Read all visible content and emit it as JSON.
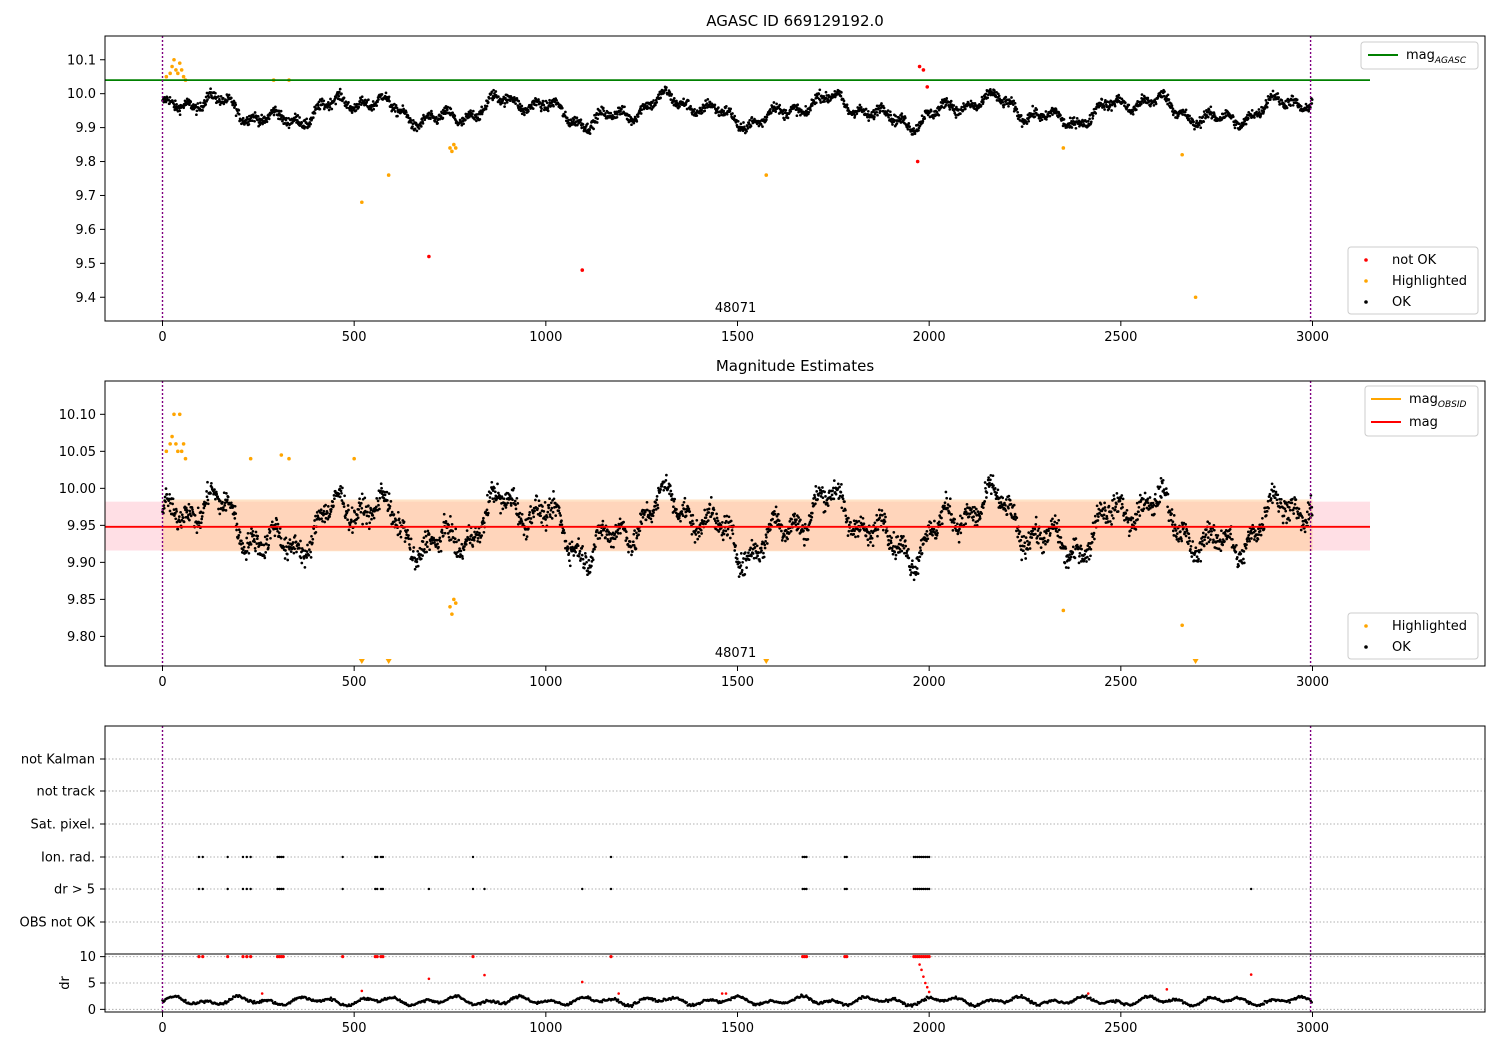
{
  "chart_data": [
    {
      "type": "scatter",
      "title": "AGASC ID 669129192.0",
      "xlim": [
        -150,
        3450
      ],
      "ylim": [
        9.33,
        10.17
      ],
      "xticks": [
        0,
        500,
        1000,
        1500,
        2000,
        2500,
        3000
      ],
      "yticks": [
        9.4,
        9.5,
        9.6,
        9.7,
        9.8,
        9.9,
        10.0,
        10.1
      ],
      "ytick_labels": [
        "9.4",
        "9.5",
        "9.6",
        "9.7",
        "9.8",
        "9.9",
        "10.0",
        "10.1"
      ],
      "vlines": [
        0,
        2995
      ],
      "obsid_label": {
        "text": "48071",
        "x": 1495
      },
      "hline": {
        "name": "mag",
        "subscript": "AGASC",
        "y": 10.04,
        "color": "#008000",
        "x": [
          -150,
          3150
        ]
      },
      "legend_upper": [
        {
          "label": "mag",
          "subscript": "AGASC",
          "color": "#008000",
          "kind": "line"
        }
      ],
      "legend_lower": [
        {
          "label": "not OK",
          "color": "#ff0000",
          "kind": "dot"
        },
        {
          "label": "Highlighted",
          "color": "#ffa500",
          "kind": "dot"
        },
        {
          "label": "OK",
          "color": "#000000",
          "kind": "dot"
        }
      ],
      "series": [
        {
          "name": "not OK",
          "color": "#ff0000",
          "points": [
            [
              695,
              9.52
            ],
            [
              1095,
              9.48
            ],
            [
              1970,
              9.8
            ],
            [
              1975,
              10.08
            ],
            [
              1985,
              10.07
            ],
            [
              1995,
              10.02
            ]
          ]
        },
        {
          "name": "Highlighted",
          "color": "#ffa500",
          "points": [
            [
              10,
              10.05
            ],
            [
              20,
              10.06
            ],
            [
              25,
              10.08
            ],
            [
              30,
              10.1
            ],
            [
              35,
              10.07
            ],
            [
              40,
              10.06
            ],
            [
              45,
              10.09
            ],
            [
              50,
              10.07
            ],
            [
              55,
              10.05
            ],
            [
              60,
              10.04
            ],
            [
              290,
              10.04
            ],
            [
              330,
              10.04
            ],
            [
              520,
              9.68
            ],
            [
              590,
              9.76
            ],
            [
              750,
              9.84
            ],
            [
              755,
              9.83
            ],
            [
              760,
              9.85
            ],
            [
              765,
              9.84
            ],
            [
              1575,
              9.76
            ],
            [
              2350,
              9.84
            ],
            [
              2660,
              9.82
            ],
            [
              2695,
              9.4
            ]
          ]
        },
        {
          "name": "OK",
          "color": "#000000",
          "trend": true
        }
      ]
    },
    {
      "type": "scatter",
      "title": "Magnitude Estimates",
      "xlim": [
        -150,
        3450
      ],
      "ylim": [
        9.76,
        10.145
      ],
      "xticks": [
        0,
        500,
        1000,
        1500,
        2000,
        2500,
        3000
      ],
      "yticks": [
        9.8,
        9.85,
        9.9,
        9.95,
        10.0,
        10.05,
        10.1
      ],
      "ytick_labels": [
        "9.80",
        "9.85",
        "9.90",
        "9.95",
        "10.00",
        "10.05",
        "10.10"
      ],
      "vlines": [
        0,
        2995
      ],
      "obsid_label": {
        "text": "48071",
        "x": 1495
      },
      "mag_line": {
        "name": "mag",
        "y": 9.948,
        "color": "#ff0000",
        "x": [
          -150,
          3150
        ]
      },
      "band": {
        "y": [
          9.916,
          9.982
        ],
        "x": [
          -150,
          3150
        ],
        "color": "#ffc0cb"
      },
      "obs_band": {
        "y": [
          9.915,
          9.985
        ],
        "x": [
          0,
          3000
        ],
        "color": "#ffcc99"
      },
      "legend_upper": [
        {
          "label": "mag",
          "subscript": "OBSID",
          "color": "#ffa500",
          "kind": "line"
        },
        {
          "label": "mag",
          "color": "#ff0000",
          "kind": "line"
        }
      ],
      "legend_lower": [
        {
          "label": "Highlighted",
          "color": "#ffa500",
          "kind": "dot"
        },
        {
          "label": "OK",
          "color": "#000000",
          "kind": "dot"
        }
      ],
      "out_of_range_markers": [
        520,
        590,
        1575,
        2695
      ],
      "series": [
        {
          "name": "Highlighted",
          "color": "#ffa500",
          "points": [
            [
              10,
              10.05
            ],
            [
              20,
              10.06
            ],
            [
              25,
              10.07
            ],
            [
              30,
              10.1
            ],
            [
              35,
              10.06
            ],
            [
              40,
              10.05
            ],
            [
              45,
              10.1
            ],
            [
              50,
              10.05
            ],
            [
              55,
              10.06
            ],
            [
              60,
              10.04
            ],
            [
              230,
              10.04
            ],
            [
              310,
              10.045
            ],
            [
              330,
              10.04
            ],
            [
              500,
              10.04
            ],
            [
              750,
              9.84
            ],
            [
              755,
              9.83
            ],
            [
              760,
              9.85
            ],
            [
              765,
              9.845
            ],
            [
              2350,
              9.835
            ],
            [
              2660,
              9.815
            ]
          ]
        },
        {
          "name": "OK",
          "color": "#000000",
          "trend": true
        }
      ]
    },
    {
      "type": "scatter",
      "title": "",
      "xlim": [
        -150,
        3450
      ],
      "xticks": [
        0,
        500,
        1000,
        1500,
        2000,
        2500,
        3000
      ],
      "vlines": [
        0,
        2995
      ],
      "flag_rows": [
        "not Kalman",
        "not track",
        "Sat. pixel.",
        "Ion. rad.",
        "dr > 5",
        "OBS not OK"
      ],
      "flag_points": {
        "Ion. rad.": [
          95,
          105,
          170,
          210,
          220,
          230,
          300,
          305,
          310,
          315,
          470,
          555,
          560,
          570,
          575,
          810,
          1170,
          1670,
          1675,
          1680,
          1780,
          1785,
          1960,
          1965,
          1970,
          1975,
          1980,
          1985,
          1990,
          1995,
          2000
        ],
        "dr > 5": [
          95,
          105,
          170,
          210,
          220,
          230,
          300,
          305,
          310,
          315,
          470,
          555,
          560,
          570,
          575,
          695,
          810,
          840,
          1095,
          1170,
          1670,
          1675,
          1680,
          1780,
          1785,
          1960,
          1965,
          1970,
          1975,
          1980,
          1985,
          1990,
          1995,
          2000,
          2840
        ]
      },
      "dr": {
        "ylabel": "dr",
        "ylim": [
          -0.5,
          10.5
        ],
        "yticks": [
          0,
          5,
          10
        ],
        "ytick_labels": [
          "0",
          "5",
          "10"
        ],
        "clipped_red": [
          95,
          105,
          170,
          210,
          220,
          230,
          300,
          305,
          310,
          315,
          470,
          555,
          560,
          570,
          575,
          810,
          1170,
          1670,
          1675,
          1680,
          1780,
          1785,
          1960,
          1965,
          1970,
          1975,
          1980,
          1985,
          1990,
          1995,
          2000
        ],
        "red_points": [
          [
            520,
            3.5
          ],
          [
            695,
            5.8
          ],
          [
            840,
            6.5
          ],
          [
            1095,
            5.2
          ],
          [
            1975,
            8.5
          ],
          [
            1980,
            7.5
          ],
          [
            1985,
            6.2
          ],
          [
            1990,
            5.0
          ],
          [
            1995,
            4.2
          ],
          [
            2000,
            3.3
          ],
          [
            2620,
            3.8
          ],
          [
            2840,
            6.6
          ],
          [
            260,
            3.0
          ],
          [
            1190,
            3.0
          ],
          [
            1460,
            3.0
          ],
          [
            1470,
            3.0
          ],
          [
            2415,
            3.0
          ]
        ]
      }
    }
  ]
}
